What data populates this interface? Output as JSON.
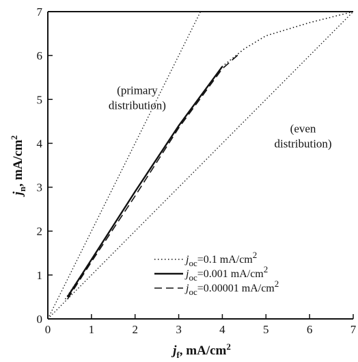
{
  "chart_data": {
    "type": "line",
    "xlabel": {
      "symbol": "j",
      "sub": "f",
      "rest": ", mA/cm",
      "sup": "2"
    },
    "ylabel": {
      "symbol": "j",
      "sub": "n",
      "rest": ", mA/cm",
      "sup": "2"
    },
    "xlim": [
      0,
      7
    ],
    "ylim": [
      0,
      7
    ],
    "xticks": [
      "0",
      "1",
      "2",
      "3",
      "4",
      "5",
      "6",
      "7"
    ],
    "yticks": [
      "0",
      "1",
      "2",
      "3",
      "4",
      "5",
      "6",
      "7"
    ],
    "grid": false,
    "legend_position": "bottom-right",
    "reference_lines": [
      {
        "label": [
          "(primary",
          "distribution)"
        ],
        "x": [
          0,
          3.5
        ],
        "y": [
          0,
          7
        ]
      },
      {
        "label": [
          "(even",
          "distribution)"
        ],
        "x": [
          0,
          7
        ],
        "y": [
          0,
          7
        ]
      }
    ],
    "series": [
      {
        "name": {
          "symbol": "j",
          "sub": "oc",
          "rest": "=0.1 mA/cm",
          "sup": "2"
        },
        "style": "dotted",
        "x": [
          0.4,
          1.0,
          2.0,
          3.0,
          4.0,
          4.5,
          5.0,
          6.0,
          7.0
        ],
        "y": [
          0.45,
          1.35,
          2.9,
          4.4,
          5.75,
          6.15,
          6.45,
          6.75,
          7.0
        ]
      },
      {
        "name": {
          "symbol": "j",
          "sub": "oc",
          "rest": "=0.001 mA/cm",
          "sup": "2"
        },
        "style": "solid",
        "x": [
          0.45,
          1.0,
          2.0,
          3.0,
          4.0
        ],
        "y": [
          0.5,
          1.35,
          2.9,
          4.4,
          5.75
        ]
      },
      {
        "name": {
          "symbol": "j",
          "sub": "oc",
          "rest": "=0.00001 mA/cm",
          "sup": "2"
        },
        "style": "dashed",
        "x": [
          0.45,
          1.0,
          2.0,
          3.0,
          4.0,
          4.4
        ],
        "y": [
          0.45,
          1.3,
          2.8,
          4.35,
          5.7,
          6.05
        ]
      }
    ]
  }
}
